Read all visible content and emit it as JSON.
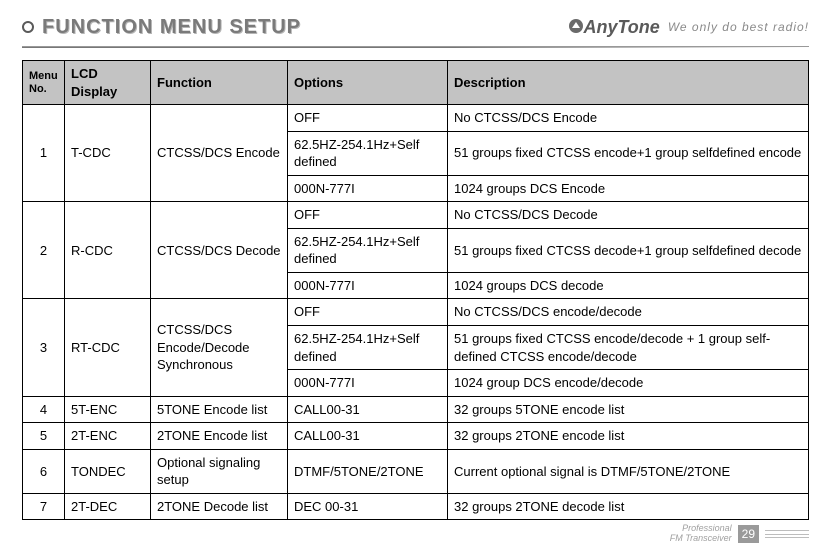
{
  "header": {
    "title": "FUNCTION MENU SETUP",
    "brand": "AnyTone",
    "tagline": "We only do best radio!"
  },
  "footer": {
    "line1": "Professional",
    "line2": "FM Transceiver",
    "page": "29"
  },
  "table": {
    "columns": [
      "Menu No.",
      "LCD Display",
      "Function",
      "Options",
      "Description"
    ],
    "groups": [
      {
        "no": "1",
        "lcd": "T-CDC",
        "func": "CTCSS/DCS Encode",
        "rows": [
          {
            "opt": "OFF",
            "desc": "No CTCSS/DCS Encode"
          },
          {
            "opt": "62.5HZ-254.1Hz+Self defined",
            "desc": "51 groups fixed CTCSS encode+1 group selfdefined encode"
          },
          {
            "opt": "000N-777I",
            "desc": "1024 groups DCS Encode"
          }
        ]
      },
      {
        "no": "2",
        "lcd": "R-CDC",
        "func": "CTCSS/DCS Decode",
        "rows": [
          {
            "opt": "OFF",
            "desc": "No CTCSS/DCS Decode"
          },
          {
            "opt": "62.5HZ-254.1Hz+Self defined",
            "desc": "51 groups fixed CTCSS decode+1 group selfdefined decode"
          },
          {
            "opt": "000N-777I",
            "desc": "1024 groups DCS decode"
          }
        ]
      },
      {
        "no": "3",
        "lcd": "RT-CDC",
        "func": "CTCSS/DCS Encode/Decode Synchronous",
        "rows": [
          {
            "opt": "OFF",
            "desc": "No CTCSS/DCS encode/decode"
          },
          {
            "opt": "62.5HZ-254.1Hz+Self defined",
            "desc": "51 groups fixed CTCSS encode/decode + 1 group self-defined CTCSS encode/decode"
          },
          {
            "opt": "000N-777I",
            "desc": "1024 group DCS encode/decode"
          }
        ]
      },
      {
        "no": "4",
        "lcd": "5T-ENC",
        "func": "5TONE Encode list",
        "rows": [
          {
            "opt": "CALL00-31",
            "desc": "32 groups 5TONE encode list"
          }
        ]
      },
      {
        "no": "5",
        "lcd": "2T-ENC",
        "func": "2TONE Encode list",
        "rows": [
          {
            "opt": "CALL00-31",
            "desc": "32 groups 2TONE encode list"
          }
        ]
      },
      {
        "no": "6",
        "lcd": "TONDEC",
        "func": "Optional signaling setup",
        "rows": [
          {
            "opt": "DTMF/5TONE/2TONE",
            "desc": "Current optional signal is DTMF/5TONE/2TONE"
          }
        ]
      },
      {
        "no": "7",
        "lcd": "2T-DEC",
        "func": "2TONE Decode list",
        "rows": [
          {
            "opt": "DEC 00-31",
            "desc": "32 groups 2TONE decode list"
          }
        ]
      }
    ]
  }
}
